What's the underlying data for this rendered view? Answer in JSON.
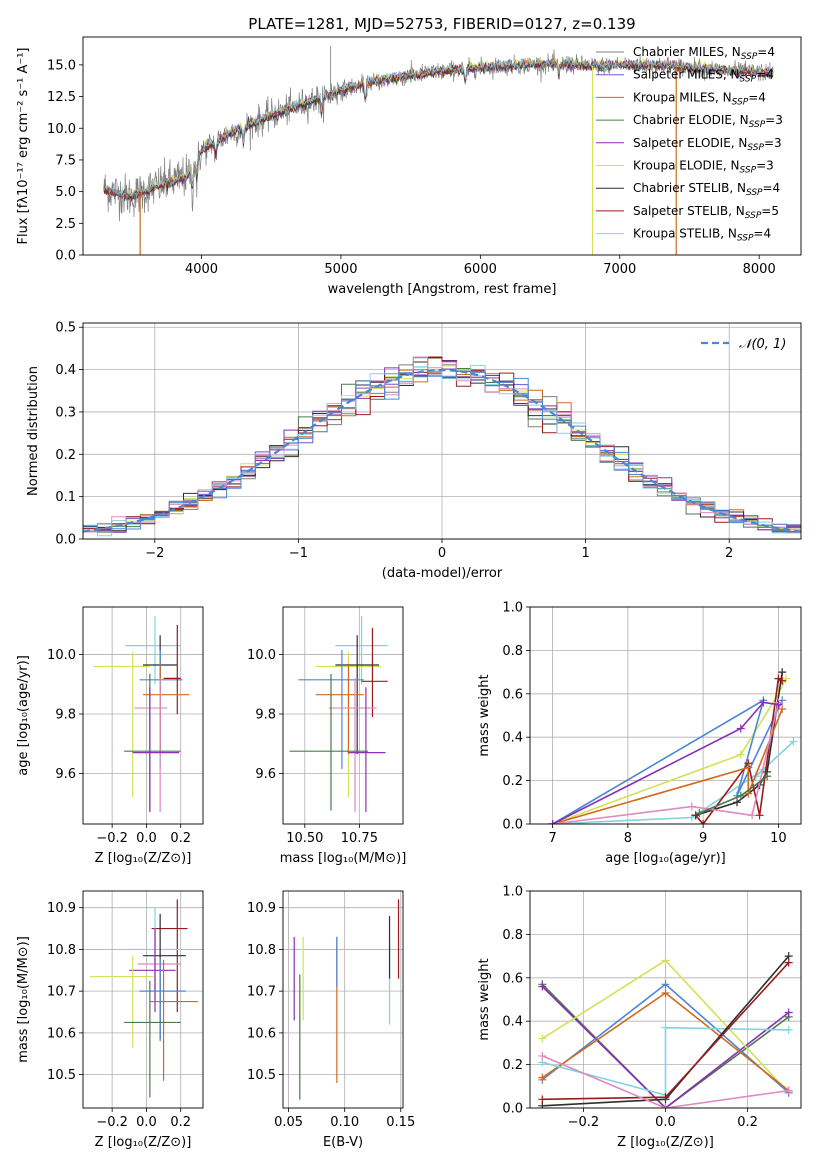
{
  "chart_data": [
    {
      "id": "spectrum",
      "type": "line",
      "title": "PLATE=1281, MJD=52753, FIBERID=0127, z=0.139",
      "xlabel": "wavelength [Angstrom, rest frame]",
      "ylabel": "Flux [fλ10⁻¹⁷ erg cm⁻² s⁻¹ A⁻¹]",
      "xlim": [
        3150,
        8300
      ],
      "ylim": [
        0,
        17.2
      ],
      "xticks": [
        4000,
        5000,
        6000,
        7000,
        8000
      ],
      "yticks": [
        0.0,
        2.5,
        5.0,
        7.5,
        10.0,
        12.5,
        15.0
      ],
      "legend_position": "top-right",
      "legend": [
        {
          "label": "Chabrier MILES, N",
          "sub": "SSP",
          "suffix": "=4",
          "color": "#808080"
        },
        {
          "label": "Salpeter MILES, N",
          "sub": "SSP",
          "suffix": "=4",
          "color": "#6a5acd"
        },
        {
          "label": "Kroupa MILES, N",
          "sub": "SSP",
          "suffix": "=4",
          "color": "#d2691e"
        },
        {
          "label": "Chabrier ELODIE, N",
          "sub": "SSP",
          "suffix": "=3",
          "color": "#4a7a4a"
        },
        {
          "label": "Salpeter ELODIE, N",
          "sub": "SSP",
          "suffix": "=3",
          "color": "#8b2fb5"
        },
        {
          "label": "Kroupa ELODIE, N",
          "sub": "SSP",
          "suffix": "=3",
          "color": "#d4e157"
        },
        {
          "label": "Chabrier STELIB, N",
          "sub": "SSP",
          "suffix": "=4",
          "color": "#2f2f2f"
        },
        {
          "label": "Salpeter STELIB, N",
          "sub": "SSP",
          "suffix": "=5",
          "color": "#9b1b1b"
        },
        {
          "label": "Kroupa STELIB, N",
          "sub": "SSP",
          "suffix": "=4",
          "color": "#80d4e0"
        }
      ],
      "continuum": {
        "x": [
          3300,
          3500,
          3700,
          3900,
          4000,
          4200,
          4500,
          4800,
          5000,
          5200,
          5500,
          5800,
          6000,
          6300,
          6600,
          6800,
          7000,
          7300,
          7600,
          8000,
          8100
        ],
        "y": [
          5.2,
          4.6,
          5.5,
          6.2,
          8.2,
          9.6,
          11.0,
          12.2,
          13.0,
          13.6,
          14.2,
          14.6,
          14.8,
          15.0,
          15.1,
          14.9,
          15.0,
          15.0,
          14.7,
          14.4,
          14.4
        ]
      },
      "dropouts": [
        {
          "x": 3560,
          "color": "#d2691e"
        },
        {
          "x": 6805,
          "color": "#d4e157"
        },
        {
          "x": 7405,
          "color": "#d2691e"
        }
      ]
    },
    {
      "id": "residuals",
      "type": "histogram",
      "xlabel": "(data-model)/error",
      "ylabel": "Normed distribution",
      "xlim": [
        -2.5,
        2.5
      ],
      "ylim": [
        0,
        0.51
      ],
      "xticks": [
        -2,
        -1,
        0,
        1,
        2
      ],
      "yticks": [
        0.0,
        0.1,
        0.2,
        0.3,
        0.4,
        0.5
      ],
      "legend_position": "top-right",
      "reference": {
        "label": "𝒩(0, 1)",
        "color": "#4a86d8"
      },
      "bin_width": 0.1,
      "bin_start": -2.5
    },
    {
      "id": "age-vs-Z",
      "type": "errorbar",
      "xlabel": "Z [log₁₀(Z/Z⊙)]",
      "ylabel": "age  [log₁₀(age/yr)]",
      "xlim": [
        -0.37,
        0.33
      ],
      "ylim": [
        9.43,
        10.16
      ],
      "xticks": [
        -0.2,
        0.0,
        0.2
      ],
      "xticklabels": [
        "−0.2",
        "0.0",
        "0.2"
      ],
      "yticks": [
        9.6,
        9.8,
        10.0
      ],
      "yticklabels": [
        "9.6",
        "9.8",
        "10.0"
      ],
      "points": [
        {
          "x": 0.05,
          "y": 10.03,
          "xerr": [
            0.17,
            0.15
          ],
          "yerr": [
            0.13,
            0.1
          ],
          "color": "#80d4e0"
        },
        {
          "x": -0.08,
          "y": 9.96,
          "xerr": [
            0.23,
            0.1
          ],
          "yerr": [
            0.44,
            0.05
          ],
          "color": "#d4e157"
        },
        {
          "x": 0.08,
          "y": 9.965,
          "xerr": [
            0.1,
            0.1
          ],
          "yerr": [
            0.3,
            0.1
          ],
          "color": "#2f2f2f"
        },
        {
          "x": 0.08,
          "y": 9.915,
          "xerr": [
            0.12,
            0.13
          ],
          "yerr": [
            0.3,
            0.1
          ],
          "color": "#4a86d8"
        },
        {
          "x": 0.18,
          "y": 9.92,
          "xerr": [
            0.08,
            0.02
          ],
          "yerr": [
            0.12,
            0.18
          ],
          "color": "#9b1b1b"
        },
        {
          "x": 0.08,
          "y": 9.865,
          "xerr": [
            0.1,
            0.17
          ],
          "yerr": [
            0.2,
            0.1
          ],
          "color": "#d2691e"
        },
        {
          "x": 0.08,
          "y": 9.82,
          "xerr": [
            0.15,
            0.04
          ],
          "yerr": [
            0.35,
            0.1
          ],
          "color": "#e08ac0"
        },
        {
          "x": 0.02,
          "y": 9.675,
          "xerr": [
            0.15,
            0.18
          ],
          "yerr": [
            0.2,
            0.26
          ],
          "color": "#4a7a4a"
        },
        {
          "x": 0.02,
          "y": 9.67,
          "xerr": [
            0.1,
            0.17
          ],
          "yerr": [
            0.2,
            0.22
          ],
          "color": "#8b2fb5"
        }
      ]
    },
    {
      "id": "age-vs-mass",
      "type": "errorbar",
      "xlabel": "mass [log₁₀(M/M⊙)]",
      "ylabel": "",
      "xlim": [
        10.4,
        10.95
      ],
      "ylim": [
        9.43,
        10.16
      ],
      "xticks": [
        10.5,
        10.75
      ],
      "xticklabels": [
        "10.50",
        "10.75"
      ],
      "yticks": [
        9.6,
        9.8,
        10.0
      ],
      "yticklabels": [
        "9.6",
        "9.8",
        "10.0"
      ],
      "points": [
        {
          "x": 10.76,
          "y": 10.03,
          "xerr": [
            0.12,
            0.12
          ],
          "yerr": [
            0.13,
            0.1
          ],
          "color": "#80d4e0"
        },
        {
          "x": 10.7,
          "y": 9.96,
          "xerr": [
            0.15,
            0.15
          ],
          "yerr": [
            0.44,
            0.05
          ],
          "color": "#d4e157"
        },
        {
          "x": 10.74,
          "y": 9.965,
          "xerr": [
            0.1,
            0.1
          ],
          "yerr": [
            0.3,
            0.1
          ],
          "color": "#2f2f2f"
        },
        {
          "x": 10.67,
          "y": 9.915,
          "xerr": [
            0.2,
            0.1
          ],
          "yerr": [
            0.3,
            0.1
          ],
          "color": "#4a86d8"
        },
        {
          "x": 10.81,
          "y": 9.91,
          "xerr": [
            0.05,
            0.07
          ],
          "yerr": [
            0.12,
            0.18
          ],
          "color": "#9b1b1b"
        },
        {
          "x": 10.7,
          "y": 9.865,
          "xerr": [
            0.15,
            0.07
          ],
          "yerr": [
            0.2,
            0.1
          ],
          "color": "#d2691e"
        },
        {
          "x": 10.73,
          "y": 9.82,
          "xerr": [
            0.12,
            0.1
          ],
          "yerr": [
            0.35,
            0.1
          ],
          "color": "#e08ac0"
        },
        {
          "x": 10.62,
          "y": 9.675,
          "xerr": [
            0.19,
            0.17
          ],
          "yerr": [
            0.2,
            0.26
          ],
          "color": "#4a7a4a"
        },
        {
          "x": 10.78,
          "y": 9.67,
          "xerr": [
            0.08,
            0.09
          ],
          "yerr": [
            0.2,
            0.22
          ],
          "color": "#8b2fb5"
        }
      ]
    },
    {
      "id": "weight-vs-age",
      "type": "line",
      "xlabel": "age  [log₁₀(age/yr)]",
      "ylabel": "mass weight",
      "xlim": [
        6.7,
        10.3
      ],
      "ylim": [
        0,
        1.0
      ],
      "xticks": [
        7,
        8,
        9,
        10
      ],
      "yticks": [
        0.0,
        0.2,
        0.4,
        0.6,
        0.8,
        1.0
      ],
      "series": [
        {
          "color": "#80d4e0",
          "x": [
            7.0,
            8.85,
            9.8,
            9.7,
            10.2
          ],
          "y": [
            0.0,
            0.03,
            0.25,
            0.22,
            0.38
          ]
        },
        {
          "color": "#d4e157",
          "x": [
            7.0,
            9.5,
            10.0,
            10.1
          ],
          "y": [
            0.0,
            0.32,
            0.6,
            0.67
          ]
        },
        {
          "color": "#2f2f2f",
          "x": [
            8.9,
            9.45,
            9.75,
            9.85,
            10.05
          ],
          "y": [
            0.04,
            0.1,
            0.18,
            0.24,
            0.7
          ]
        },
        {
          "color": "#4a86d8",
          "x": [
            7.0,
            9.8,
            9.45,
            10.05
          ],
          "y": [
            0.0,
            0.57,
            0.13,
            0.57
          ]
        },
        {
          "color": "#9b1b1b",
          "x": [
            8.9,
            9.0,
            9.6,
            9.75,
            10.0,
            10.05
          ],
          "y": [
            0.04,
            0.0,
            0.28,
            0.04,
            0.67,
            0.66
          ]
        },
        {
          "color": "#d2691e",
          "x": [
            7.0,
            9.6,
            9.6,
            10.05
          ],
          "y": [
            0.0,
            0.26,
            0.14,
            0.53
          ]
        },
        {
          "color": "#e08ac0",
          "x": [
            7.0,
            8.85,
            9.65,
            10.0
          ],
          "y": [
            0.0,
            0.08,
            0.04,
            0.56
          ]
        },
        {
          "color": "#4a7a4a",
          "x": [
            8.95,
            9.5,
            9.85
          ],
          "y": [
            0.05,
            0.13,
            0.22
          ]
        },
        {
          "color": "#8b2fb5",
          "x": [
            7.0,
            9.5,
            9.8,
            10.0
          ],
          "y": [
            0.0,
            0.44,
            0.56,
            0.55
          ]
        }
      ]
    },
    {
      "id": "mass-vs-Z",
      "type": "errorbar",
      "xlabel": "Z [log₁₀(Z/Z⊙)]",
      "ylabel": "mass [log₁₀(M/M⊙)]",
      "xlim": [
        -0.37,
        0.33
      ],
      "ylim": [
        10.42,
        10.94
      ],
      "xticks": [
        -0.2,
        0.0,
        0.2
      ],
      "xticklabels": [
        "−0.2",
        "0.0",
        "0.2"
      ],
      "yticks": [
        10.5,
        10.6,
        10.7,
        10.8,
        10.9
      ],
      "yticklabels": [
        "10.5",
        "10.6",
        "10.7",
        "10.8",
        "10.9"
      ],
      "points": [
        {
          "x": 0.18,
          "y": 10.85,
          "xerr": [
            0.15,
            0.06
          ],
          "yerr": [
            0.2,
            0.07
          ],
          "color": "#9b1b1b"
        },
        {
          "x": 0.05,
          "y": 10.8,
          "xerr": [
            0.17,
            0.15
          ],
          "yerr": [
            0.1,
            0.1
          ],
          "color": "#80d4e0"
        },
        {
          "x": 0.08,
          "y": 10.785,
          "xerr": [
            0.1,
            0.15
          ],
          "yerr": [
            0.2,
            0.1
          ],
          "color": "#2f2f2f"
        },
        {
          "x": 0.05,
          "y": 10.765,
          "xerr": [
            0.1,
            0.15
          ],
          "yerr": [
            0.1,
            0.08
          ],
          "color": "#e08ac0"
        },
        {
          "x": 0.05,
          "y": 10.75,
          "xerr": [
            0.15,
            0.12
          ],
          "yerr": [
            0.1,
            0.1
          ],
          "color": "#8b2fb5"
        },
        {
          "x": -0.08,
          "y": 10.735,
          "xerr": [
            0.25,
            0.12
          ],
          "yerr": [
            0.17,
            0.05
          ],
          "color": "#d4e157"
        },
        {
          "x": 0.08,
          "y": 10.7,
          "xerr": [
            0.12,
            0.15
          ],
          "yerr": [
            0.12,
            0.08
          ],
          "color": "#4a86d8"
        },
        {
          "x": 0.1,
          "y": 10.675,
          "xerr": [
            0.08,
            0.2
          ],
          "yerr": [
            0.19,
            0.1
          ],
          "color": "#d2691e"
        },
        {
          "x": 0.02,
          "y": 10.625,
          "xerr": [
            0.15,
            0.18
          ],
          "yerr": [
            0.18,
            0.1
          ],
          "color": "#4a7a4a"
        }
      ]
    },
    {
      "id": "mass-vs-ebv",
      "type": "errorbar",
      "xlabel": "E(B-V)",
      "ylabel": "",
      "xlim": [
        0.045,
        0.152
      ],
      "ylim": [
        10.42,
        10.94
      ],
      "xticks": [
        0.05,
        0.1,
        0.15
      ],
      "xticklabels": [
        "0.05",
        "0.10",
        "0.15"
      ],
      "yticks": [
        10.5,
        10.6,
        10.7,
        10.8,
        10.9
      ],
      "yticklabels": [
        "10.5",
        "10.6",
        "10.7",
        "10.8",
        "10.9"
      ],
      "points": [
        {
          "x": 0.055,
          "y": 10.73,
          "xerr": [
            0,
            0
          ],
          "yerr": [
            0.1,
            0.1
          ],
          "color": "#8b2fb5"
        },
        {
          "x": 0.06,
          "y": 10.64,
          "xerr": [
            0,
            0
          ],
          "yerr": [
            0.2,
            0.1
          ],
          "color": "#4a7a4a"
        },
        {
          "x": 0.063,
          "y": 10.73,
          "xerr": [
            0,
            0
          ],
          "yerr": [
            0.1,
            0.1
          ],
          "color": "#d4e157"
        },
        {
          "x": 0.093,
          "y": 10.63,
          "xerr": [
            0,
            0
          ],
          "yerr": [
            0.15,
            0.2
          ],
          "color": "#d2691e"
        },
        {
          "x": 0.093,
          "y": 10.76,
          "xerr": [
            0,
            0
          ],
          "yerr": [
            0.05,
            0.07
          ],
          "color": "#4a86d8"
        },
        {
          "x": 0.14,
          "y": 10.72,
          "xerr": [
            0,
            0
          ],
          "yerr": [
            0.1,
            0.1
          ],
          "color": "#80d4e0"
        },
        {
          "x": 0.14,
          "y": 10.78,
          "xerr": [
            0,
            0
          ],
          "yerr": [
            0.05,
            0.1
          ],
          "color": "#2f2f2f"
        },
        {
          "x": 0.148,
          "y": 10.78,
          "xerr": [
            0,
            0
          ],
          "yerr": [
            0.05,
            0.14
          ],
          "color": "#9b1b1b"
        }
      ]
    },
    {
      "id": "weight-vs-Z",
      "type": "line",
      "xlabel": "Z [log₁₀(Z/Z⊙)]",
      "ylabel": "mass weight",
      "xlim": [
        -0.33,
        0.33
      ],
      "ylim": [
        0,
        1.0
      ],
      "xticks": [
        -0.2,
        0.0,
        0.2
      ],
      "xticklabels": [
        "−0.2",
        "0.0",
        "0.2"
      ],
      "yticks": [
        0.0,
        0.2,
        0.4,
        0.6,
        0.8,
        1.0
      ],
      "series": [
        {
          "color": "#4a7a4a",
          "x": [
            -0.3,
            0.0,
            0.3
          ],
          "y": [
            0.57,
            0.0,
            0.42
          ]
        },
        {
          "color": "#8b2fb5",
          "x": [
            -0.3,
            0.0,
            0.3
          ],
          "y": [
            0.56,
            0.0,
            0.44
          ]
        },
        {
          "color": "#d4e157",
          "x": [
            -0.3,
            0.0,
            0.3
          ],
          "y": [
            0.32,
            0.68,
            0.07
          ]
        },
        {
          "color": "#4a86d8",
          "x": [
            -0.3,
            0.0,
            0.3
          ],
          "y": [
            0.13,
            0.57,
            0.07
          ]
        },
        {
          "color": "#d2691e",
          "x": [
            -0.3,
            0.0,
            0.3
          ],
          "y": [
            0.14,
            0.53,
            0.08
          ]
        },
        {
          "color": "#80d4e0",
          "x": [
            -0.3,
            0.0,
            0.0,
            0.3
          ],
          "y": [
            0.21,
            0.06,
            0.37,
            0.36
          ]
        },
        {
          "color": "#2f2f2f",
          "x": [
            -0.3,
            0.0,
            0.3
          ],
          "y": [
            0.01,
            0.04,
            0.7
          ]
        },
        {
          "color": "#9b1b1b",
          "x": [
            -0.3,
            0.0,
            0.3
          ],
          "y": [
            0.04,
            0.05,
            0.67
          ]
        },
        {
          "color": "#e08ac0",
          "x": [
            -0.3,
            0.0,
            0.3
          ],
          "y": [
            0.24,
            0.0,
            0.08
          ]
        }
      ]
    }
  ]
}
